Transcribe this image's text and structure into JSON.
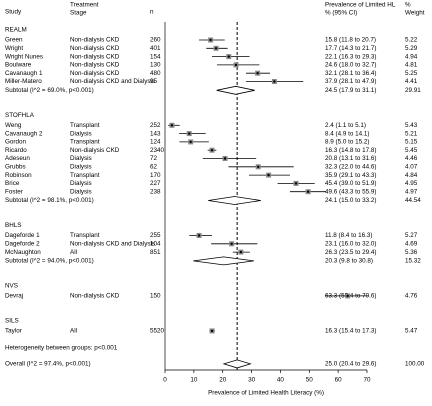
{
  "chart_data": {
    "type": "forest",
    "columns": {
      "study": "Study",
      "stage": [
        "Treatment",
        "Stage"
      ],
      "n": "n",
      "ci": [
        "Prevalence of Limited HL",
        "% (95% CI)"
      ],
      "weight": [
        "%",
        "Weight"
      ]
    },
    "xlabel": "Prevalence of Limited Health Literacy (%)",
    "xlim": [
      0,
      70
    ],
    "xticks": [
      0,
      10,
      20,
      30,
      40,
      50,
      60,
      70
    ],
    "groups": [
      {
        "name": "REALM",
        "studies": [
          {
            "study": "Green",
            "stage": "Non-dialysis CKD",
            "n": 260,
            "estimate": 15.8,
            "lower": 11.8,
            "upper": 20.7,
            "ci_label": "15.8 (11.8 to 20.7)",
            "weight": "5.22"
          },
          {
            "study": "Wright",
            "stage": "Non-dialysis CKD",
            "n": 401,
            "estimate": 17.7,
            "lower": 14.3,
            "upper": 21.7,
            "ci_label": "17.7 (14.3 to 21.7)",
            "weight": "5.29"
          },
          {
            "study": "Wright Nunes",
            "stage": "Non-dialysis CKD",
            "n": 154,
            "estimate": 22.1,
            "lower": 16.3,
            "upper": 29.3,
            "ci_label": "22.1 (16.3 to 29.3)",
            "weight": "4.94"
          },
          {
            "study": "Boulware",
            "stage": "Non-dialysis CKD",
            "n": 130,
            "estimate": 24.6,
            "lower": 18.0,
            "upper": 32.7,
            "ci_label": "24.6 (18.0 to 32.7)",
            "weight": "4.81"
          },
          {
            "study": "Cavanaugh 1",
            "stage": "Non-dialysis CKD",
            "n": 480,
            "estimate": 32.1,
            "lower": 28.1,
            "upper": 36.4,
            "ci_label": "32.1 (28.1 to 36.4)",
            "weight": "5.25"
          },
          {
            "study": "Miller-Matero",
            "stage": "Non-dialysis CKD and Dialysis",
            "n": 95,
            "estimate": 37.9,
            "lower": 28.1,
            "upper": 47.9,
            "ci_label": "37.9 (28.1 to 47.9)",
            "weight": "4.41"
          }
        ],
        "subtotal": {
          "label": "Subtotal  (I^2 = 69.0%, p<0.001)",
          "estimate": 24.5,
          "lower": 17.9,
          "upper": 31.1,
          "ci_label": "24.5 (17.9 to 31.1)",
          "weight": "29.91"
        }
      },
      {
        "name": "STOFHLA",
        "studies": [
          {
            "study": "Weng",
            "stage": "Transplant",
            "n": 252,
            "estimate": 2.4,
            "lower": 1.1,
            "upper": 5.1,
            "ci_label": "2.4 (1.1 to 5.1)",
            "weight": "5.43"
          },
          {
            "study": "Cavanaugh 2",
            "stage": "Dialysis",
            "n": 143,
            "estimate": 8.4,
            "lower": 4.9,
            "upper": 14.1,
            "ci_label": "8.4 (4.9 to 14.1)",
            "weight": "5.21"
          },
          {
            "study": "Gordon",
            "stage": "Transplant",
            "n": 124,
            "estimate": 8.9,
            "lower": 5.0,
            "upper": 15.2,
            "ci_label": "8.9 (5.0 to 15.2)",
            "weight": "5.15"
          },
          {
            "study": "Ricardo",
            "stage": "Non-dialysis CKD",
            "n": 2340,
            "estimate": 16.3,
            "lower": 14.8,
            "upper": 17.8,
            "ci_label": "16.3 (14.8 to 17.8)",
            "weight": "5.45"
          },
          {
            "study": "Adeseun",
            "stage": "Dialysis",
            "n": 72,
            "estimate": 20.8,
            "lower": 13.1,
            "upper": 31.6,
            "ci_label": "20.8 (13.1 to 31.6)",
            "weight": "4.46"
          },
          {
            "study": "Grubbs",
            "stage": "Dialysis",
            "n": 62,
            "estimate": 32.3,
            "lower": 22.0,
            "upper": 44.6,
            "ci_label": "32.3 (22.0 to 44.6)",
            "weight": "4.07"
          },
          {
            "study": "Robinson",
            "stage": "Transplant",
            "n": 170,
            "estimate": 35.9,
            "lower": 29.1,
            "upper": 43.3,
            "ci_label": "35.9 (29.1 to 43.3)",
            "weight": "4.84"
          },
          {
            "study": "Brice",
            "stage": "Dialysis",
            "n": 227,
            "estimate": 45.4,
            "lower": 39.0,
            "upper": 51.9,
            "ci_label": "45.4 (39.0 to 51.9)",
            "weight": "4.95"
          },
          {
            "study": "Foster",
            "stage": "Dialysis",
            "n": 238,
            "estimate": 49.6,
            "lower": 43.3,
            "upper": 55.9,
            "ci_label": "49.6 (43.3 to 55.9)",
            "weight": "4.97"
          }
        ],
        "subtotal": {
          "label": "Subtotal  (I^2 = 98.1%, p<0.001)",
          "estimate": 24.1,
          "lower": 15.0,
          "upper": 33.2,
          "ci_label": "24.1 (15.0 to 33.2)",
          "weight": "44.54"
        }
      },
      {
        "name": "BHLS",
        "studies": [
          {
            "study": "Dageforde 1",
            "stage": "Transplant",
            "n": 255,
            "estimate": 11.8,
            "lower": 8.4,
            "upper": 16.3,
            "ci_label": "11.8 (8.4 to 16.3)",
            "weight": "5.27"
          },
          {
            "study": "Dageforde 2",
            "stage": "Non-dialysis CKD and Dialysis",
            "n": 104,
            "estimate": 23.1,
            "lower": 16.0,
            "upper": 32.0,
            "ci_label": "23.1 (16.0 to 32.0)",
            "weight": "4.69"
          },
          {
            "study": "McNaughton",
            "stage": "All",
            "n": 851,
            "estimate": 26.3,
            "lower": 23.5,
            "upper": 29.4,
            "ci_label": "26.3 (23.5 to 29.4)",
            "weight": "5.36"
          }
        ],
        "subtotal": {
          "label": "Subtotal  (I^2 = 94.0%, p<0.001)",
          "estimate": 20.3,
          "lower": 9.8,
          "upper": 30.8,
          "ci_label": "20.3 (9.8 to 30.8)",
          "weight": "15.32"
        }
      },
      {
        "name": "NVS",
        "studies": [
          {
            "study": "Devraj",
            "stage": "Non-dialysis CKD",
            "n": 150,
            "estimate": 63.3,
            "lower": 55.4,
            "upper": 70.6,
            "ci_label": "63.3 (55.4 to 70.6)",
            "weight": "4.76"
          }
        ]
      },
      {
        "name": "SILS",
        "studies": [
          {
            "study": "Taylor",
            "stage": "All",
            "n": 5520,
            "estimate": 16.3,
            "lower": 15.4,
            "upper": 17.3,
            "ci_label": "16.3 (15.4 to 17.3)",
            "weight": "5.47"
          }
        ]
      }
    ],
    "heterogeneity": "Heterogeneity between groups: p<0.001",
    "overall": {
      "label": "Overall  (I^2 = 97.4%, p<0.001)",
      "estimate": 25.0,
      "lower": 20.4,
      "upper": 29.6,
      "ci_label": "25.0 (20.4 to 29.6)",
      "weight": "100.00"
    }
  }
}
